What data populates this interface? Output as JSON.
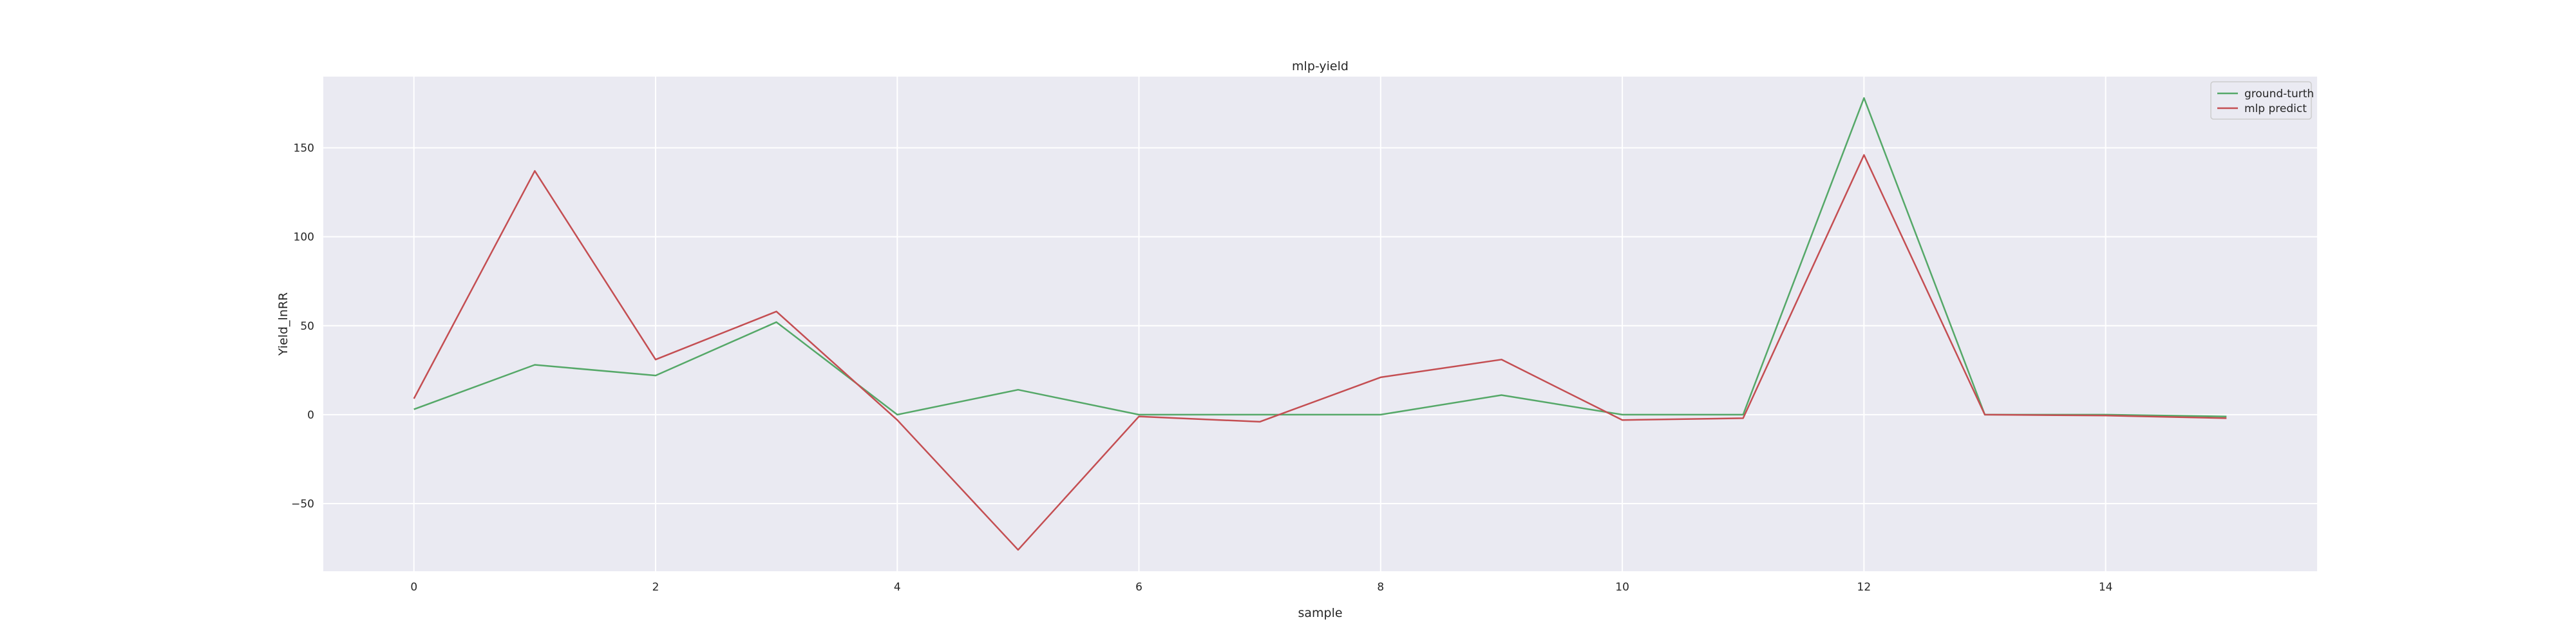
{
  "chart_data": {
    "type": "line",
    "title": "mlp-yield",
    "xlabel": "sample",
    "ylabel": "Yield_lnRR",
    "x": [
      0,
      1,
      2,
      3,
      4,
      5,
      6,
      7,
      8,
      9,
      10,
      11,
      12,
      13,
      14,
      15
    ],
    "xticks": [
      0,
      2,
      4,
      6,
      8,
      10,
      12,
      14
    ],
    "yticks": [
      -50,
      0,
      50,
      100,
      150
    ],
    "xlim": [
      -0.75,
      15.75
    ],
    "ylim": [
      -88,
      190
    ],
    "grid": true,
    "legend_position": "top-right",
    "series": [
      {
        "name": "ground-turth",
        "color": "#55a868",
        "values": [
          3,
          28,
          22,
          52,
          0,
          14,
          0,
          0,
          0,
          11,
          0,
          0,
          178,
          0,
          0,
          -1
        ]
      },
      {
        "name": "mlp predict",
        "color": "#c44e52",
        "values": [
          9,
          137,
          31,
          58,
          -3,
          -76,
          -1,
          -4,
          21,
          31,
          -3,
          -2,
          146,
          0,
          -0.5,
          -2
        ]
      }
    ]
  }
}
